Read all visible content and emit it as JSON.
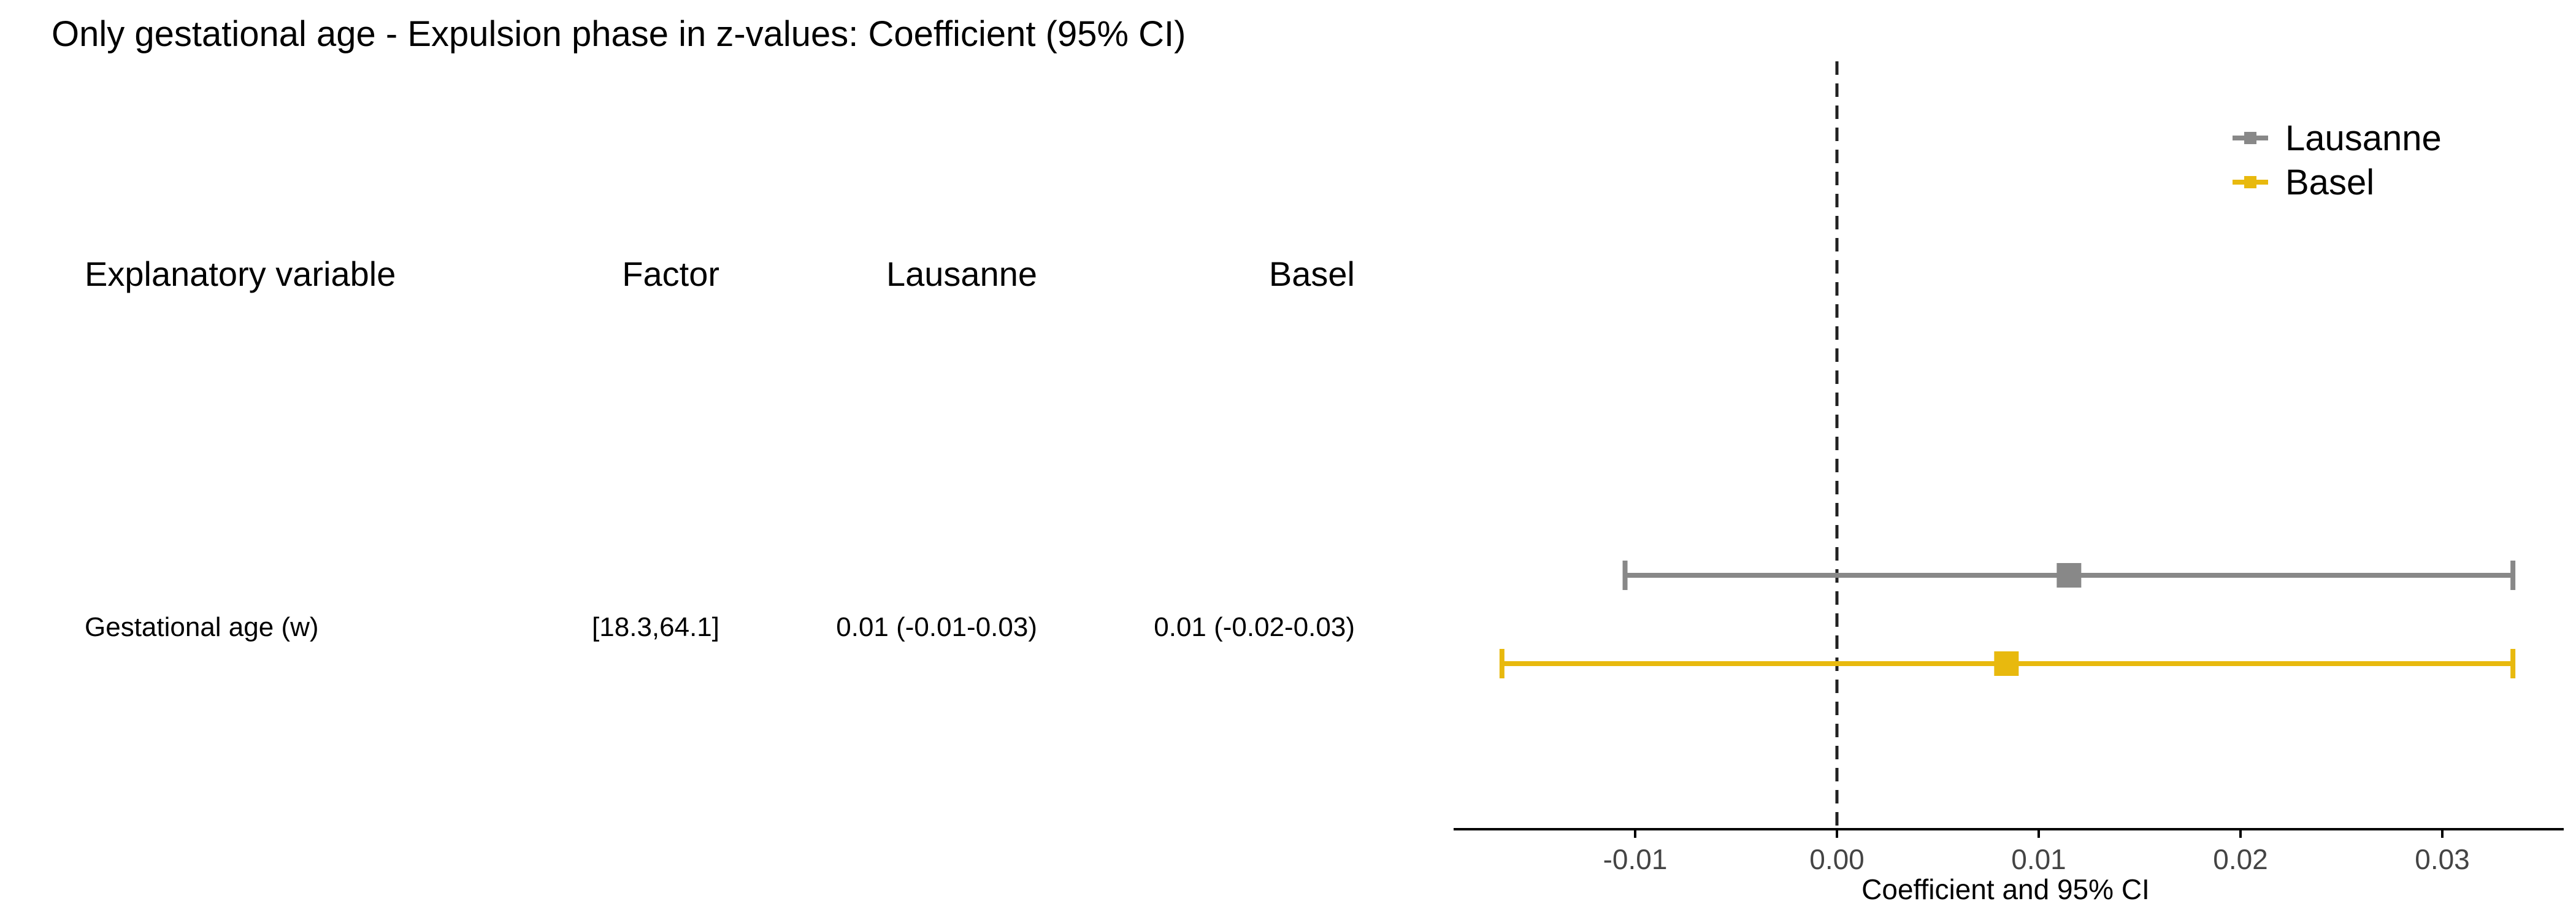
{
  "title": "Only gestational age - Expulsion phase in z-values: Coefficient (95% CI)",
  "table": {
    "headers": [
      "Explanatory variable",
      "Factor",
      "Lausanne",
      "Basel"
    ],
    "rows": [
      {
        "variable": "Gestational age (w)",
        "factor": "[18.3,64.1]",
        "lausanne": "0.01 (-0.01-0.03)",
        "basel": "0.01 (-0.02-0.03)"
      }
    ]
  },
  "chart_data": {
    "type": "forest",
    "title": "",
    "xlabel": "Coefficient and 95% CI",
    "xlim": [
      -0.019,
      0.036
    ],
    "xticks": [
      -0.01,
      0.0,
      0.01,
      0.02,
      0.03
    ],
    "xtick_labels": [
      "-0.01",
      "0.00",
      "0.01",
      "0.02",
      "0.03"
    ],
    "reference_line": 0,
    "legend_position": "top-right",
    "series": [
      {
        "name": "Lausanne",
        "color": "#888888",
        "estimate": 0.0115,
        "lower": -0.0105,
        "upper": 0.0335
      },
      {
        "name": "Basel",
        "color": "#E8B90E",
        "estimate": 0.0084,
        "lower": -0.0166,
        "upper": 0.0335
      }
    ]
  }
}
